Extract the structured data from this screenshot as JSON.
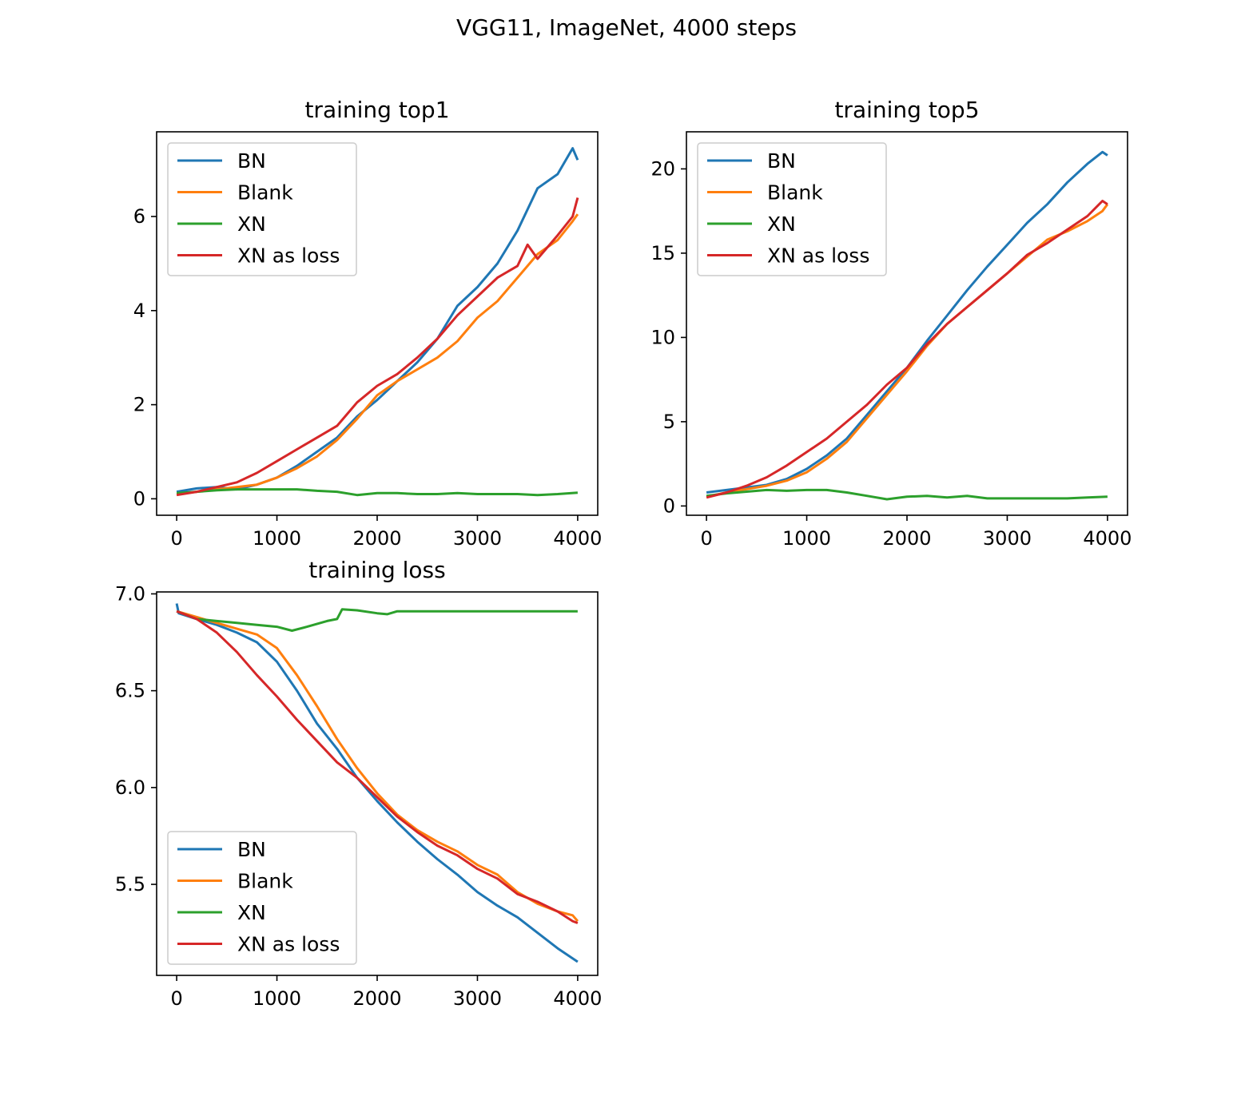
{
  "figure": {
    "suptitle": "VGG11, ImageNet, 4000 steps"
  },
  "chart_data": [
    {
      "type": "line",
      "title": "training top1",
      "xlabel": "",
      "ylabel": "",
      "xlim": [
        -200,
        4200
      ],
      "ylim": [
        -0.35,
        7.8
      ],
      "xticks": [
        0,
        1000,
        2000,
        3000,
        4000
      ],
      "yticks": [
        0,
        2,
        4,
        6
      ],
      "legend": "upper-left",
      "grid": false,
      "series": [
        {
          "name": "BN",
          "color": "#1f77b4",
          "x": [
            0,
            200,
            400,
            600,
            800,
            1000,
            1200,
            1400,
            1600,
            1800,
            2000,
            2200,
            2400,
            2600,
            2800,
            3000,
            3200,
            3400,
            3600,
            3800,
            3950,
            4000
          ],
          "y": [
            0.15,
            0.22,
            0.25,
            0.2,
            0.3,
            0.45,
            0.7,
            1.0,
            1.3,
            1.75,
            2.1,
            2.5,
            2.9,
            3.4,
            4.1,
            4.5,
            5.0,
            5.7,
            6.6,
            6.9,
            7.45,
            7.2
          ]
        },
        {
          "name": "Blank",
          "color": "#ff7f0e",
          "x": [
            0,
            200,
            400,
            600,
            800,
            1000,
            1200,
            1400,
            1600,
            1800,
            2000,
            2200,
            2400,
            2600,
            2800,
            3000,
            3200,
            3400,
            3600,
            3800,
            3950,
            4000
          ],
          "y": [
            0.1,
            0.15,
            0.2,
            0.25,
            0.3,
            0.45,
            0.65,
            0.9,
            1.25,
            1.7,
            2.2,
            2.5,
            2.75,
            3.0,
            3.35,
            3.85,
            4.2,
            4.7,
            5.2,
            5.5,
            5.9,
            6.05
          ]
        },
        {
          "name": "XN",
          "color": "#2ca02c",
          "x": [
            0,
            200,
            400,
            600,
            800,
            1000,
            1200,
            1400,
            1600,
            1800,
            2000,
            2200,
            2400,
            2600,
            2800,
            3000,
            3200,
            3400,
            3600,
            3800,
            4000
          ],
          "y": [
            0.12,
            0.15,
            0.18,
            0.2,
            0.2,
            0.2,
            0.2,
            0.17,
            0.15,
            0.08,
            0.12,
            0.12,
            0.1,
            0.1,
            0.12,
            0.1,
            0.1,
            0.1,
            0.08,
            0.1,
            0.13
          ]
        },
        {
          "name": "XN as loss",
          "color": "#d62728",
          "x": [
            0,
            200,
            400,
            600,
            800,
            1000,
            1200,
            1400,
            1600,
            1800,
            2000,
            2200,
            2400,
            2600,
            2800,
            3000,
            3200,
            3400,
            3500,
            3600,
            3800,
            3950,
            4000
          ],
          "y": [
            0.08,
            0.15,
            0.25,
            0.35,
            0.55,
            0.8,
            1.05,
            1.3,
            1.55,
            2.05,
            2.4,
            2.65,
            3.0,
            3.4,
            3.9,
            4.3,
            4.7,
            4.95,
            5.4,
            5.1,
            5.6,
            6.0,
            6.4
          ]
        }
      ]
    },
    {
      "type": "line",
      "title": "training top5",
      "xlabel": "",
      "ylabel": "",
      "xlim": [
        -200,
        4200
      ],
      "ylim": [
        -0.55,
        22.2
      ],
      "xticks": [
        0,
        1000,
        2000,
        3000,
        4000
      ],
      "yticks": [
        0,
        5,
        10,
        15,
        20
      ],
      "legend": "upper-left",
      "grid": false,
      "series": [
        {
          "name": "BN",
          "color": "#1f77b4",
          "x": [
            0,
            200,
            400,
            600,
            800,
            1000,
            1200,
            1400,
            1600,
            1800,
            2000,
            2200,
            2400,
            2600,
            2800,
            3000,
            3200,
            3400,
            3600,
            3800,
            3950,
            4000
          ],
          "y": [
            0.8,
            0.95,
            1.1,
            1.25,
            1.6,
            2.2,
            3.0,
            4.0,
            5.4,
            6.8,
            8.2,
            9.8,
            11.3,
            12.8,
            14.2,
            15.5,
            16.8,
            17.9,
            19.2,
            20.3,
            21.0,
            20.8
          ]
        },
        {
          "name": "Blank",
          "color": "#ff7f0e",
          "x": [
            0,
            200,
            400,
            600,
            800,
            1000,
            1200,
            1400,
            1600,
            1800,
            2000,
            2200,
            2400,
            2600,
            2800,
            3000,
            3200,
            3400,
            3600,
            3800,
            3950,
            4000
          ],
          "y": [
            0.55,
            0.8,
            1.0,
            1.2,
            1.5,
            2.0,
            2.8,
            3.8,
            5.2,
            6.6,
            8.0,
            9.5,
            10.8,
            11.8,
            12.8,
            13.8,
            14.8,
            15.8,
            16.3,
            16.9,
            17.5,
            17.9
          ]
        },
        {
          "name": "XN",
          "color": "#2ca02c",
          "x": [
            0,
            200,
            400,
            600,
            800,
            1000,
            1200,
            1400,
            1600,
            1800,
            2000,
            2200,
            2400,
            2600,
            2800,
            3000,
            3200,
            3400,
            3600,
            3800,
            4000
          ],
          "y": [
            0.6,
            0.75,
            0.85,
            0.95,
            0.9,
            0.95,
            0.95,
            0.8,
            0.6,
            0.4,
            0.55,
            0.6,
            0.5,
            0.6,
            0.45,
            0.45,
            0.45,
            0.45,
            0.45,
            0.5,
            0.55
          ]
        },
        {
          "name": "XN as loss",
          "color": "#d62728",
          "x": [
            0,
            200,
            400,
            600,
            800,
            1000,
            1200,
            1400,
            1600,
            1800,
            2000,
            2200,
            2400,
            2600,
            2800,
            3000,
            3200,
            3400,
            3600,
            3800,
            3950,
            4000
          ],
          "y": [
            0.5,
            0.8,
            1.2,
            1.7,
            2.4,
            3.2,
            4.0,
            5.0,
            6.0,
            7.2,
            8.2,
            9.6,
            10.8,
            11.8,
            12.8,
            13.8,
            14.9,
            15.6,
            16.4,
            17.2,
            18.1,
            17.9
          ]
        }
      ]
    },
    {
      "type": "line",
      "title": "training loss",
      "xlabel": "",
      "ylabel": "",
      "xlim": [
        -200,
        4200
      ],
      "ylim": [
        5.03,
        7.01
      ],
      "xticks": [
        0,
        1000,
        2000,
        3000,
        4000
      ],
      "yticks": [
        5.5,
        6.0,
        6.5,
        7.0
      ],
      "ytick_labels": [
        "5.5",
        "6.0",
        "6.5",
        "7.0"
      ],
      "legend": "lower-left",
      "grid": false,
      "series": [
        {
          "name": "BN",
          "color": "#1f77b4",
          "x": [
            0,
            20,
            200,
            400,
            600,
            800,
            1000,
            1200,
            1400,
            1600,
            1800,
            2000,
            2200,
            2400,
            2600,
            2800,
            3000,
            3200,
            3400,
            3600,
            3800,
            4000
          ],
          "y": [
            6.95,
            6.9,
            6.87,
            6.84,
            6.8,
            6.75,
            6.65,
            6.5,
            6.33,
            6.2,
            6.05,
            5.93,
            5.82,
            5.72,
            5.63,
            5.55,
            5.46,
            5.39,
            5.33,
            5.25,
            5.17,
            5.1
          ]
        },
        {
          "name": "Blank",
          "color": "#ff7f0e",
          "x": [
            0,
            200,
            400,
            600,
            800,
            1000,
            1200,
            1400,
            1600,
            1800,
            2000,
            2200,
            2400,
            2600,
            2800,
            3000,
            3200,
            3400,
            3600,
            3800,
            3950,
            4000
          ],
          "y": [
            6.91,
            6.88,
            6.85,
            6.82,
            6.79,
            6.72,
            6.58,
            6.42,
            6.25,
            6.1,
            5.97,
            5.86,
            5.78,
            5.72,
            5.67,
            5.6,
            5.55,
            5.46,
            5.4,
            5.36,
            5.34,
            5.31
          ]
        },
        {
          "name": "XN",
          "color": "#2ca02c",
          "x": [
            0,
            200,
            400,
            600,
            800,
            1000,
            1150,
            1300,
            1500,
            1600,
            1650,
            1800,
            2000,
            2100,
            2200,
            2400,
            3000,
            3500,
            4000
          ],
          "y": [
            6.91,
            6.87,
            6.86,
            6.85,
            6.84,
            6.83,
            6.81,
            6.83,
            6.86,
            6.87,
            6.92,
            6.915,
            6.9,
            6.895,
            6.91,
            6.91,
            6.91,
            6.91,
            6.91
          ]
        },
        {
          "name": "XN as loss",
          "color": "#d62728",
          "x": [
            0,
            200,
            400,
            600,
            800,
            1000,
            1200,
            1400,
            1600,
            1800,
            2000,
            2200,
            2400,
            2600,
            2800,
            3000,
            3200,
            3400,
            3600,
            3800,
            3950,
            4000
          ],
          "y": [
            6.91,
            6.87,
            6.8,
            6.7,
            6.58,
            6.47,
            6.35,
            6.24,
            6.13,
            6.05,
            5.95,
            5.85,
            5.77,
            5.7,
            5.65,
            5.58,
            5.53,
            5.45,
            5.41,
            5.36,
            5.31,
            5.3
          ]
        }
      ]
    }
  ]
}
